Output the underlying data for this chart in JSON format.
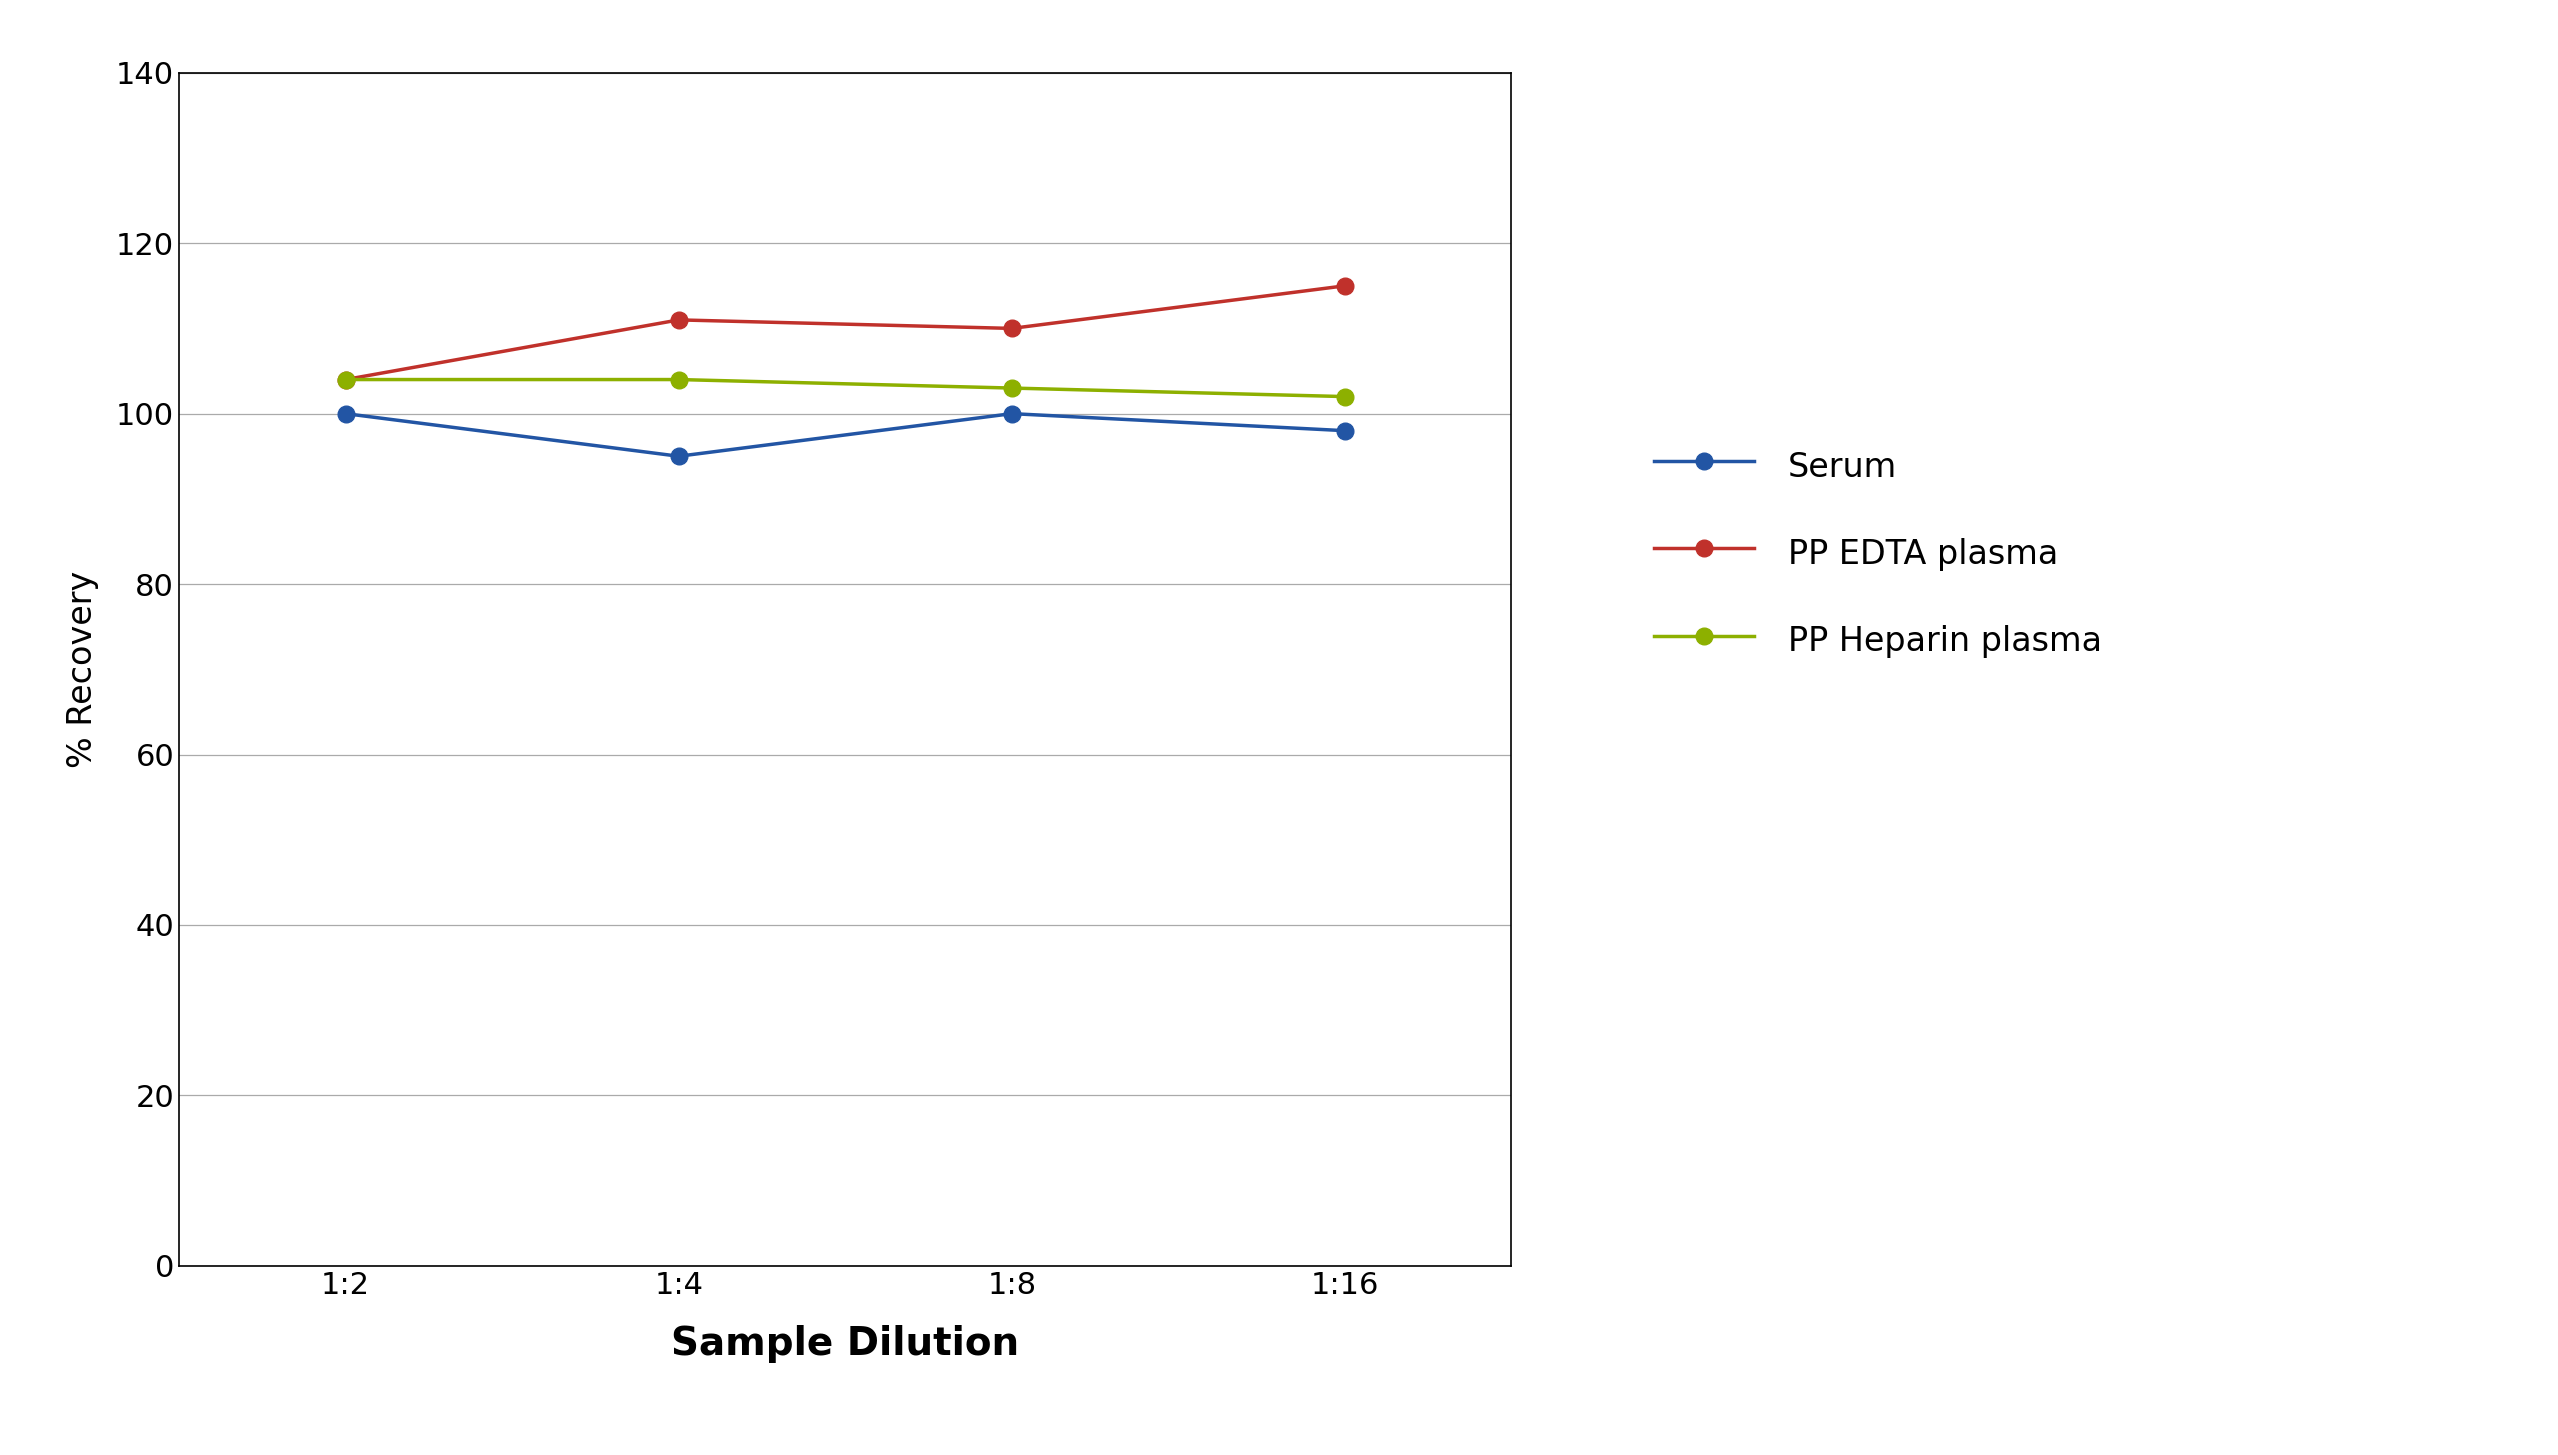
{
  "x_labels": [
    "1:2",
    "1:4",
    "1:8",
    "1:16"
  ],
  "x_positions": [
    0,
    1,
    2,
    3
  ],
  "series": [
    {
      "name": "Serum",
      "color": "#2255a4",
      "values": [
        100,
        95,
        100,
        98
      ]
    },
    {
      "name": "PP EDTA plasma",
      "color": "#c0312b",
      "values": [
        104,
        111,
        110,
        115
      ]
    },
    {
      "name": "PP Heparin plasma",
      "color": "#8db000",
      "values": [
        104,
        104,
        103,
        102
      ]
    }
  ],
  "ylabel": "% Recovery",
  "xlabel": "Sample Dilution",
  "ylim": [
    0,
    140
  ],
  "yticks": [
    0,
    20,
    40,
    60,
    80,
    100,
    120,
    140
  ],
  "grid_color": "#aaaaaa",
  "background_color": "#ffffff",
  "marker_size": 12,
  "line_width": 2.5,
  "ylabel_fontsize": 24,
  "xlabel_fontsize": 28,
  "tick_fontsize": 22,
  "legend_fontsize": 24,
  "legend_labelspacing": 1.4
}
